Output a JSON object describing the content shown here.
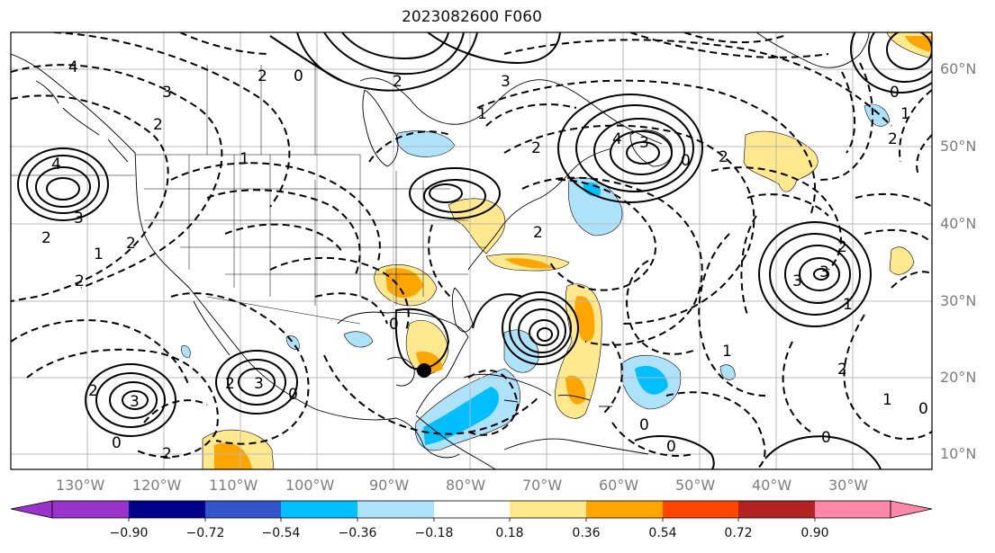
{
  "title": "2023082600 F060",
  "lat_labels": [
    "60°N",
    "50°N",
    "40°N",
    "30°N",
    "20°N",
    "10°N"
  ],
  "lon_labels": [
    "130°W",
    "120°W",
    "110°W",
    "100°W",
    "90°W",
    "80°W",
    "70°W",
    "60°W",
    "50°W",
    "40°W",
    "30°W"
  ],
  "colorbar": {
    "ticks": [
      "−0.90",
      "−0.72",
      "−0.54",
      "−0.36",
      "−0.18",
      "0.18",
      "0.36",
      "0.54",
      "0.72",
      "0.90"
    ],
    "colors": [
      "#9933cc",
      "#00008b",
      "#3355cc",
      "#00bfff",
      "#aee2fb",
      "#ffffff",
      "#ffe88e",
      "#ffa500",
      "#ff4500",
      "#b22222",
      "#ff88aa"
    ]
  },
  "contour_labels": [
    "4",
    "3",
    "2",
    "2",
    "1",
    "0",
    "4",
    "3",
    "2",
    "2",
    "1",
    "2",
    "3",
    "2",
    "2",
    "3",
    "2",
    "0",
    "0",
    "0",
    "2",
    "3",
    "1",
    "2",
    "2",
    "4",
    "3",
    "2",
    "1",
    "0",
    "3",
    "2",
    "1",
    "0",
    "2",
    "1",
    "1",
    "2",
    "3",
    "0",
    "0",
    "0",
    "0"
  ],
  "storm_marker": "storm-center"
}
